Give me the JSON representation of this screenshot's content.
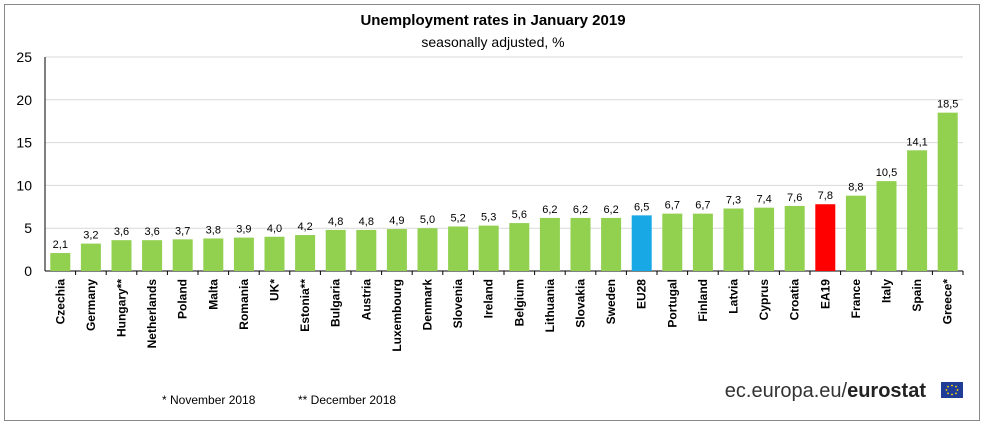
{
  "chart_data": {
    "type": "bar",
    "title": "Unemployment rates in January 2019",
    "subtitle": "seasonally adjusted, %",
    "xlabel": "",
    "ylabel": "",
    "ylim": [
      0,
      25
    ],
    "yticks": [
      "0",
      "5",
      "10",
      "15",
      "20",
      "25"
    ],
    "categories": [
      "Czechia",
      "Germany",
      "Hungary**",
      "Netherlands",
      "Poland",
      "Malta",
      "Romania",
      "UK*",
      "Estonia**",
      "Bulgaria",
      "Austria",
      "Luxembourg",
      "Denmark",
      "Slovenia",
      "Ireland",
      "Belgium",
      "Lithuania",
      "Slovakia",
      "Sweden",
      "EU28",
      "Portugal",
      "Finland",
      "Latvia",
      "Cyprus",
      "Croatia",
      "EA19",
      "France",
      "Italy",
      "Spain",
      "Greece*"
    ],
    "values": [
      2.1,
      3.2,
      3.6,
      3.6,
      3.7,
      3.8,
      3.9,
      4.0,
      4.2,
      4.8,
      4.8,
      4.9,
      5.0,
      5.2,
      5.3,
      5.6,
      6.2,
      6.2,
      6.2,
      6.5,
      6.7,
      6.7,
      7.3,
      7.4,
      7.6,
      7.8,
      8.8,
      10.5,
      14.1,
      18.5
    ],
    "value_labels": [
      "2,1",
      "3,2",
      "3,6",
      "3,6",
      "3,7",
      "3,8",
      "3,9",
      "4,0",
      "4,2",
      "4,8",
      "4,8",
      "4,9",
      "5,0",
      "5,2",
      "5,3",
      "5,6",
      "6,2",
      "6,2",
      "6,2",
      "6,5",
      "6,7",
      "6,7",
      "7,3",
      "7,4",
      "7,6",
      "7,8",
      "8,8",
      "10,5",
      "14,1",
      "18,5"
    ],
    "bar_colors": {
      "default": "#92d050",
      "EU28": "#19a8e6",
      "EA19": "#ff0000"
    },
    "grid": true
  },
  "footnotes": {
    "note1": "* November 2018",
    "note2": "** December 2018"
  },
  "branding": {
    "prefix": "ec.europa.eu/",
    "name": "eurostat",
    "logo_icon": "eu-flag-icon"
  }
}
